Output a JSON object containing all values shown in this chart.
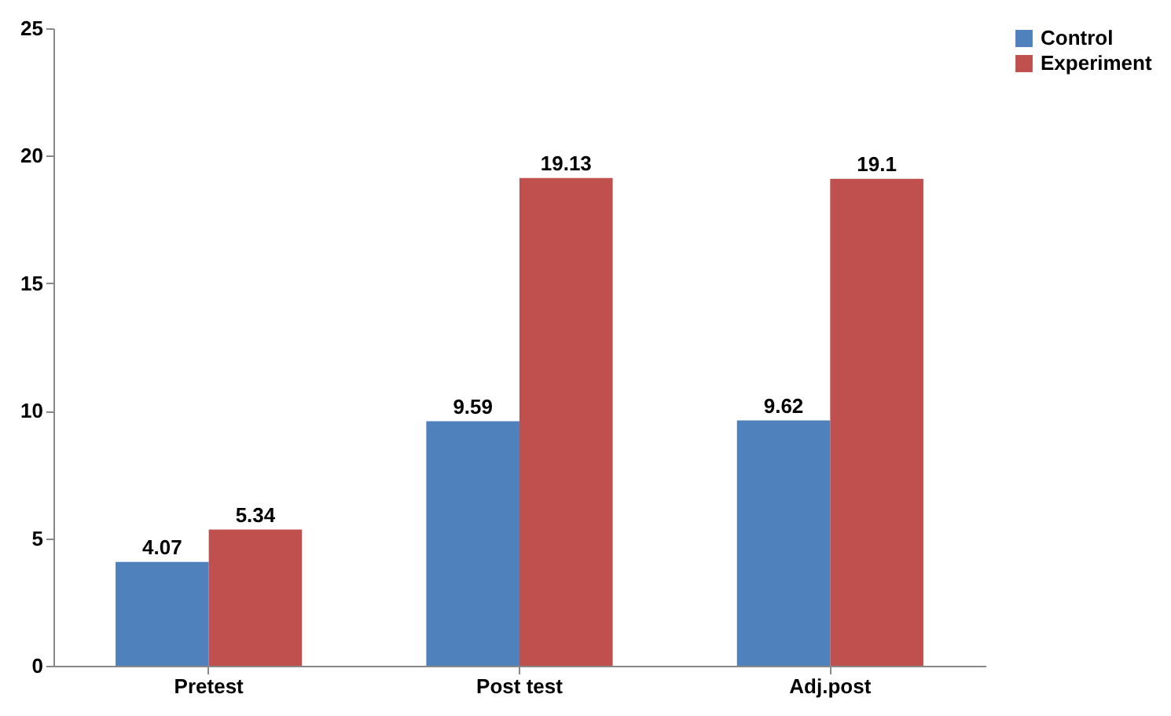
{
  "chart_data": {
    "type": "bar",
    "categories": [
      "Pretest",
      "Post test",
      "Adj.post"
    ],
    "series": [
      {
        "name": "Control",
        "color": "#4f81bd",
        "values": [
          4.07,
          9.59,
          9.62
        ]
      },
      {
        "name": "Experiment",
        "color": "#c0504d",
        "values": [
          5.34,
          19.13,
          19.1
        ]
      }
    ],
    "ylim": [
      0,
      25
    ],
    "yticks": [
      0,
      5,
      10,
      15,
      20,
      25
    ],
    "grid": false,
    "data_labels": true,
    "legend": "right"
  }
}
